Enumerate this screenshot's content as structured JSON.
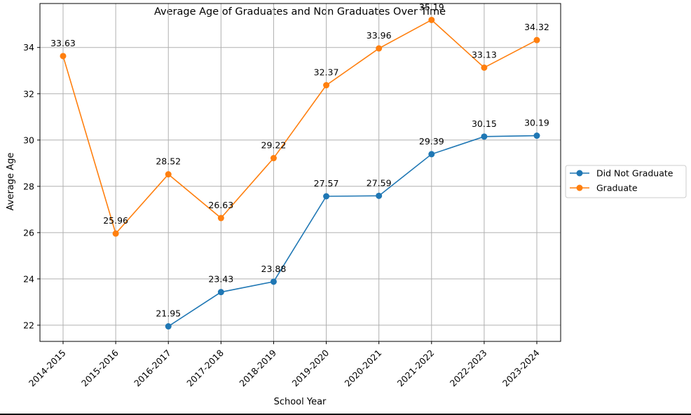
{
  "chart_data": {
    "type": "line",
    "title": "Average Age of Graduates and Non Graduates Over Time",
    "xlabel": "School Year",
    "ylabel": "Average Age",
    "categories": [
      "2014-2015",
      "2015-2016",
      "2016-2017",
      "2017-2018",
      "2018-2019",
      "2019-2020",
      "2020-2021",
      "2021-2022",
      "2022-2023",
      "2023-2024"
    ],
    "yticks": [
      22,
      24,
      26,
      28,
      30,
      32,
      34
    ],
    "ylim": [
      21.3,
      35.9
    ],
    "grid": true,
    "legend_position": "right",
    "series": [
      {
        "name": "Did Not Graduate",
        "color": "#1f77b4",
        "values": [
          null,
          null,
          21.95,
          23.43,
          23.88,
          27.57,
          27.59,
          29.39,
          30.15,
          30.19
        ],
        "labels": [
          "",
          "",
          "21.95",
          "23.43",
          "23.88",
          "27.57",
          "27.59",
          "29.39",
          "30.15",
          "30.19"
        ]
      },
      {
        "name": "Graduate",
        "color": "#ff7f0e",
        "values": [
          33.63,
          25.96,
          28.52,
          26.63,
          29.22,
          32.37,
          33.96,
          35.19,
          33.13,
          34.32
        ],
        "labels": [
          "33.63",
          "25.96",
          "28.52",
          "26.63",
          "29.22",
          "32.37",
          "33.96",
          "35.19",
          "33.13",
          "34.32"
        ]
      }
    ]
  }
}
